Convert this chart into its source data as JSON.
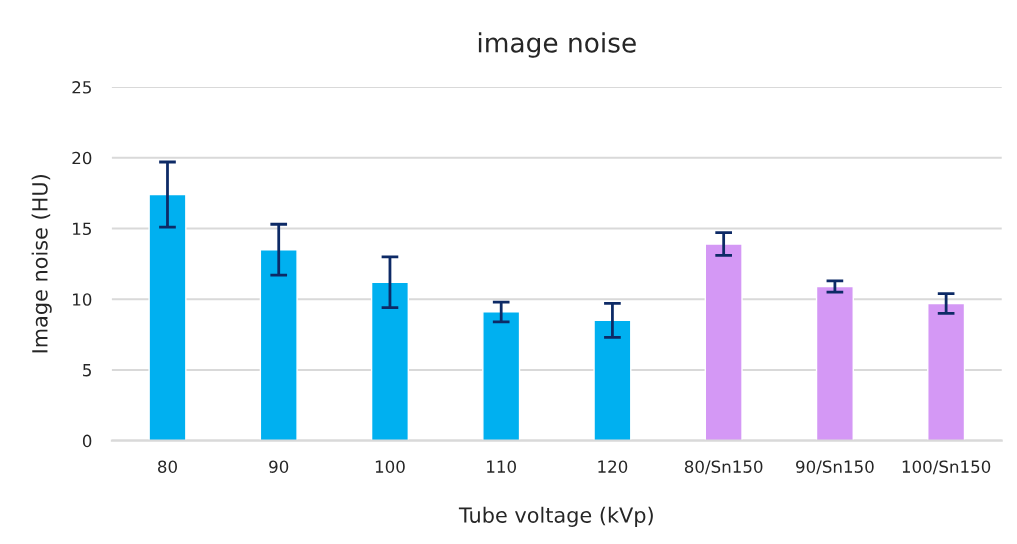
{
  "chart_data": {
    "type": "bar",
    "title": "image noise",
    "xlabel": "Tube voltage (kVp)",
    "ylabel": "Image noise (HU)",
    "categories": [
      "80",
      "90",
      "100",
      "110",
      "120",
      "80/Sn150",
      "90/Sn150",
      "100/Sn150"
    ],
    "values": [
      17.4,
      13.5,
      11.2,
      9.1,
      8.5,
      13.9,
      10.9,
      9.7
    ],
    "errors": [
      2.3,
      1.8,
      1.8,
      0.7,
      1.2,
      0.8,
      0.4,
      0.7
    ],
    "colors": [
      "#00b0f0",
      "#00b0f0",
      "#00b0f0",
      "#00b0f0",
      "#00b0f0",
      "#d498f5",
      "#d498f5",
      "#d498f5"
    ],
    "ylim": [
      0,
      25
    ],
    "yticks": [
      0,
      5,
      10,
      15,
      20,
      25
    ],
    "grid": "y",
    "legend": false
  }
}
